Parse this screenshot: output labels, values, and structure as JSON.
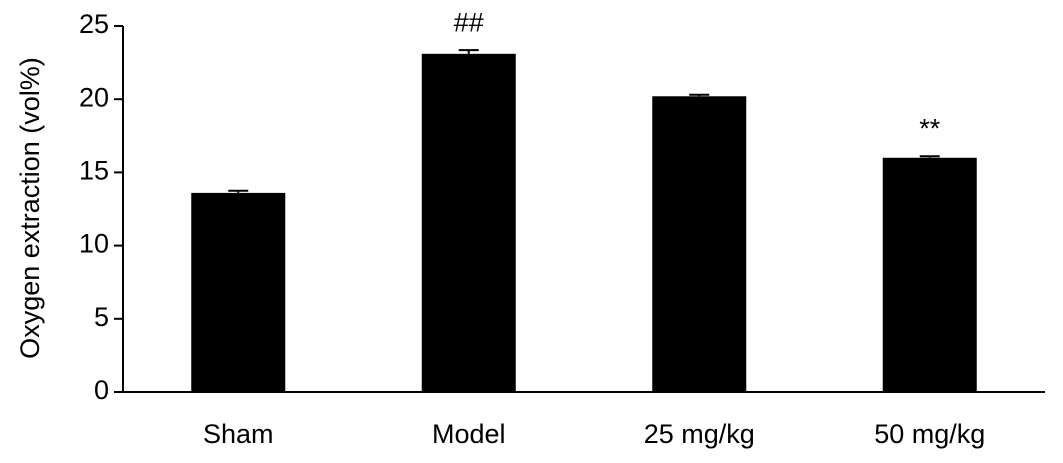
{
  "chart_data": {
    "type": "bar",
    "y_label": "Oxygen extraction (vol%)",
    "categories": [
      "Sham",
      "Model",
      "25 mg/kg",
      "50 mg/kg"
    ],
    "values": [
      13.6,
      23.1,
      20.2,
      16.0
    ],
    "errors": [
      0.15,
      0.25,
      0.1,
      0.1
    ],
    "annotations": [
      null,
      "##",
      null,
      "**"
    ],
    "color": "#000000",
    "ylim": [
      0,
      25
    ],
    "yticks": [
      0,
      5,
      10,
      15,
      20,
      25
    ],
    "grid": false
  }
}
